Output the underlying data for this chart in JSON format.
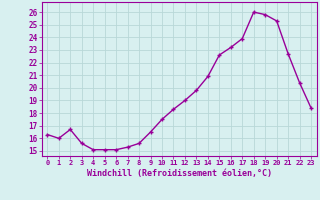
{
  "x": [
    0,
    1,
    2,
    3,
    4,
    5,
    6,
    7,
    8,
    9,
    10,
    11,
    12,
    13,
    14,
    15,
    16,
    17,
    18,
    19,
    20,
    21,
    22,
    23
  ],
  "y": [
    16.3,
    16.0,
    16.7,
    15.6,
    15.1,
    15.1,
    15.1,
    15.3,
    15.6,
    16.5,
    17.5,
    18.3,
    19.0,
    19.8,
    20.9,
    22.6,
    23.2,
    23.9,
    26.0,
    25.8,
    25.3,
    22.7,
    20.4,
    18.4
  ],
  "line_color": "#990099",
  "marker": "+",
  "marker_size": 3,
  "bg_color": "#d8f0f0",
  "grid_color": "#b8d8d8",
  "xlabel": "Windchill (Refroidissement éolien,°C)",
  "ylabel_ticks": [
    15,
    16,
    17,
    18,
    19,
    20,
    21,
    22,
    23,
    24,
    25,
    26
  ],
  "ylim": [
    14.6,
    26.8
  ],
  "xlim": [
    -0.5,
    23.5
  ],
  "xlabel_color": "#990099",
  "tick_color": "#990099",
  "line_width": 1.0,
  "marker_color": "#990099"
}
